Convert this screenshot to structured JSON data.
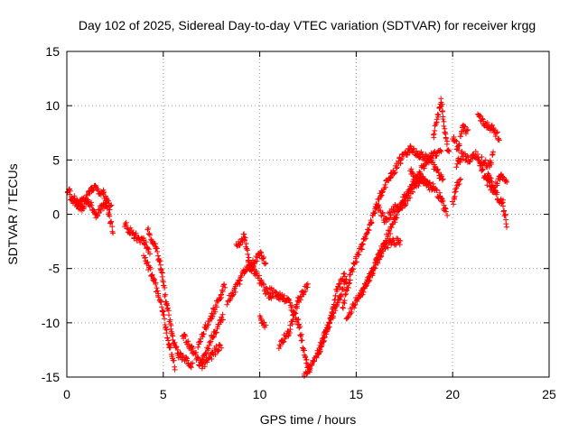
{
  "chart_data": {
    "type": "scatter",
    "title": "Day 102 of 2025, Sidereal Day-to-day VTEC variation (SDTVAR) for receiver krgg",
    "xlabel": "GPS time / hours",
    "ylabel": "SDTVAR / TECUs",
    "xlim": [
      0,
      25
    ],
    "ylim": [
      -15,
      15
    ],
    "xticks": [
      0,
      5,
      10,
      15,
      20,
      25
    ],
    "yticks": [
      -15,
      -10,
      -5,
      0,
      5,
      10,
      15
    ],
    "xtick_labels": [
      "0",
      "5",
      "10",
      "15",
      "20",
      "25"
    ],
    "ytick_labels": [
      "-15",
      "-10",
      "-5",
      "0",
      "5",
      "10",
      "15"
    ],
    "grid": true,
    "marker": "+",
    "series": [
      {
        "name": "SDTVAR",
        "color": "#ff0000",
        "tracks": [
          [
            [
              0.0,
              2.5
            ],
            [
              0.5,
              1.0
            ],
            [
              1.0,
              1.5
            ],
            [
              1.5,
              0.0
            ],
            [
              2.0,
              1.0
            ],
            [
              2.4,
              -1.5
            ]
          ],
          [
            [
              0.2,
              1.5
            ],
            [
              0.8,
              0.5
            ],
            [
              1.3,
              2.5
            ],
            [
              1.9,
              2.0
            ],
            [
              2.3,
              0.5
            ]
          ],
          [
            [
              3.0,
              -1.0
            ],
            [
              3.5,
              -2.0
            ],
            [
              4.0,
              -2.5
            ],
            [
              4.3,
              -3.5
            ]
          ],
          [
            [
              4.2,
              -1.5
            ],
            [
              4.6,
              -3.0
            ],
            [
              4.9,
              -5.0
            ],
            [
              5.2,
              -8.5
            ],
            [
              5.5,
              -11.5
            ],
            [
              5.8,
              -13.0
            ],
            [
              6.2,
              -13.5
            ],
            [
              6.5,
              -14.0
            ]
          ],
          [
            [
              4.0,
              -4.0
            ],
            [
              4.5,
              -6.0
            ],
            [
              5.0,
              -9.0
            ],
            [
              5.3,
              -12.0
            ],
            [
              5.6,
              -14.0
            ]
          ],
          [
            [
              6.0,
              -11.0
            ],
            [
              6.5,
              -12.5
            ],
            [
              7.0,
              -14.0
            ],
            [
              7.5,
              -13.0
            ],
            [
              8.0,
              -12.0
            ]
          ],
          [
            [
              6.8,
              -12.0
            ],
            [
              7.2,
              -10.5
            ],
            [
              7.6,
              -9.0
            ],
            [
              8.0,
              -7.5
            ],
            [
              8.2,
              -6.5
            ]
          ],
          [
            [
              7.0,
              -13.5
            ],
            [
              7.6,
              -11.0
            ],
            [
              8.1,
              -9.5
            ]
          ],
          [
            [
              8.3,
              -8.0
            ],
            [
              8.6,
              -7.5
            ],
            [
              9.0,
              -6.0
            ],
            [
              9.4,
              -4.5
            ],
            [
              9.8,
              -5.5
            ],
            [
              10.3,
              -7.0
            ],
            [
              10.6,
              -8.0
            ]
          ],
          [
            [
              8.8,
              -3.0
            ],
            [
              9.2,
              -2.0
            ],
            [
              9.5,
              -5.0
            ],
            [
              10.0,
              -3.5
            ],
            [
              10.3,
              -4.5
            ]
          ],
          [
            [
              10.0,
              -9.5
            ],
            [
              10.3,
              -10.5
            ]
          ],
          [
            [
              10.5,
              -7.0
            ],
            [
              11.0,
              -7.5
            ],
            [
              11.5,
              -8.0
            ],
            [
              12.0,
              -10.0
            ],
            [
              12.4,
              -13.5
            ],
            [
              12.6,
              -14.5
            ]
          ],
          [
            [
              11.0,
              -12.0
            ],
            [
              11.5,
              -11.0
            ],
            [
              12.0,
              -8.0
            ],
            [
              12.5,
              -6.5
            ]
          ],
          [
            [
              12.3,
              -15.0
            ],
            [
              12.8,
              -13.5
            ],
            [
              13.2,
              -12.0
            ],
            [
              13.6,
              -10.0
            ],
            [
              14.0,
              -7.0
            ],
            [
              14.4,
              -5.5
            ]
          ],
          [
            [
              13.0,
              -13.0
            ],
            [
              13.5,
              -10.5
            ],
            [
              14.0,
              -8.5
            ],
            [
              14.5,
              -6.0
            ]
          ],
          [
            [
              14.3,
              -8.5
            ],
            [
              14.8,
              -5.0
            ],
            [
              15.3,
              -3.0
            ],
            [
              15.8,
              -0.5
            ],
            [
              16.3,
              2.0
            ],
            [
              16.8,
              3.5
            ],
            [
              17.3,
              5.0
            ],
            [
              17.8,
              6.0
            ],
            [
              18.3,
              5.5
            ],
            [
              18.8,
              5.0
            ],
            [
              19.2,
              4.0
            ],
            [
              19.5,
              3.0
            ]
          ],
          [
            [
              14.5,
              -9.5
            ],
            [
              15.0,
              -8.0
            ],
            [
              15.5,
              -6.5
            ],
            [
              16.0,
              -4.5
            ],
            [
              16.5,
              -2.5
            ],
            [
              17.0,
              -0.5
            ],
            [
              17.5,
              1.5
            ],
            [
              18.0,
              3.0
            ],
            [
              18.5,
              4.5
            ],
            [
              19.0,
              5.5
            ],
            [
              19.4,
              6.0
            ]
          ],
          [
            [
              15.2,
              -7.5
            ],
            [
              15.8,
              -5.5
            ],
            [
              16.3,
              -3.5
            ],
            [
              16.8,
              -2.5
            ],
            [
              17.3,
              -2.5
            ]
          ],
          [
            [
              16.0,
              1.0
            ],
            [
              16.5,
              -0.5
            ],
            [
              17.0,
              0.5
            ],
            [
              17.5,
              1.0
            ],
            [
              18.0,
              2.5
            ],
            [
              18.5,
              3.0
            ],
            [
              19.0,
              2.5
            ],
            [
              19.4,
              1.5
            ],
            [
              19.7,
              0.0
            ]
          ],
          [
            [
              17.8,
              4.0
            ],
            [
              18.3,
              3.5
            ],
            [
              18.8,
              2.5
            ]
          ],
          [
            [
              19.0,
              7.0
            ],
            [
              19.3,
              9.5
            ],
            [
              19.4,
              10.5
            ],
            [
              19.6,
              7.5
            ],
            [
              19.8,
              5.5
            ]
          ],
          [
            [
              20.0,
              7.0
            ],
            [
              20.3,
              6.0
            ],
            [
              20.5,
              8.0
            ],
            [
              20.8,
              7.5
            ]
          ],
          [
            [
              20.2,
              4.5
            ],
            [
              20.5,
              5.5
            ],
            [
              20.8,
              5.0
            ],
            [
              21.2,
              5.5
            ],
            [
              21.5,
              4.5
            ]
          ],
          [
            [
              20.0,
              1.0
            ],
            [
              20.2,
              2.5
            ],
            [
              20.4,
              3.0
            ]
          ],
          [
            [
              21.3,
              9.0
            ],
            [
              21.6,
              8.5
            ],
            [
              22.0,
              8.0
            ],
            [
              22.4,
              7.0
            ]
          ],
          [
            [
              21.4,
              4.5
            ],
            [
              21.8,
              3.0
            ],
            [
              22.2,
              2.0
            ],
            [
              22.6,
              1.0
            ],
            [
              22.8,
              -1.0
            ]
          ],
          [
            [
              21.8,
              3.5
            ],
            [
              22.2,
              2.5
            ],
            [
              22.5,
              3.5
            ],
            [
              22.8,
              3.0
            ]
          ],
          [
            [
              21.5,
              5.0
            ],
            [
              21.9,
              4.5
            ],
            [
              22.1,
              5.5
            ]
          ]
        ]
      }
    ]
  }
}
